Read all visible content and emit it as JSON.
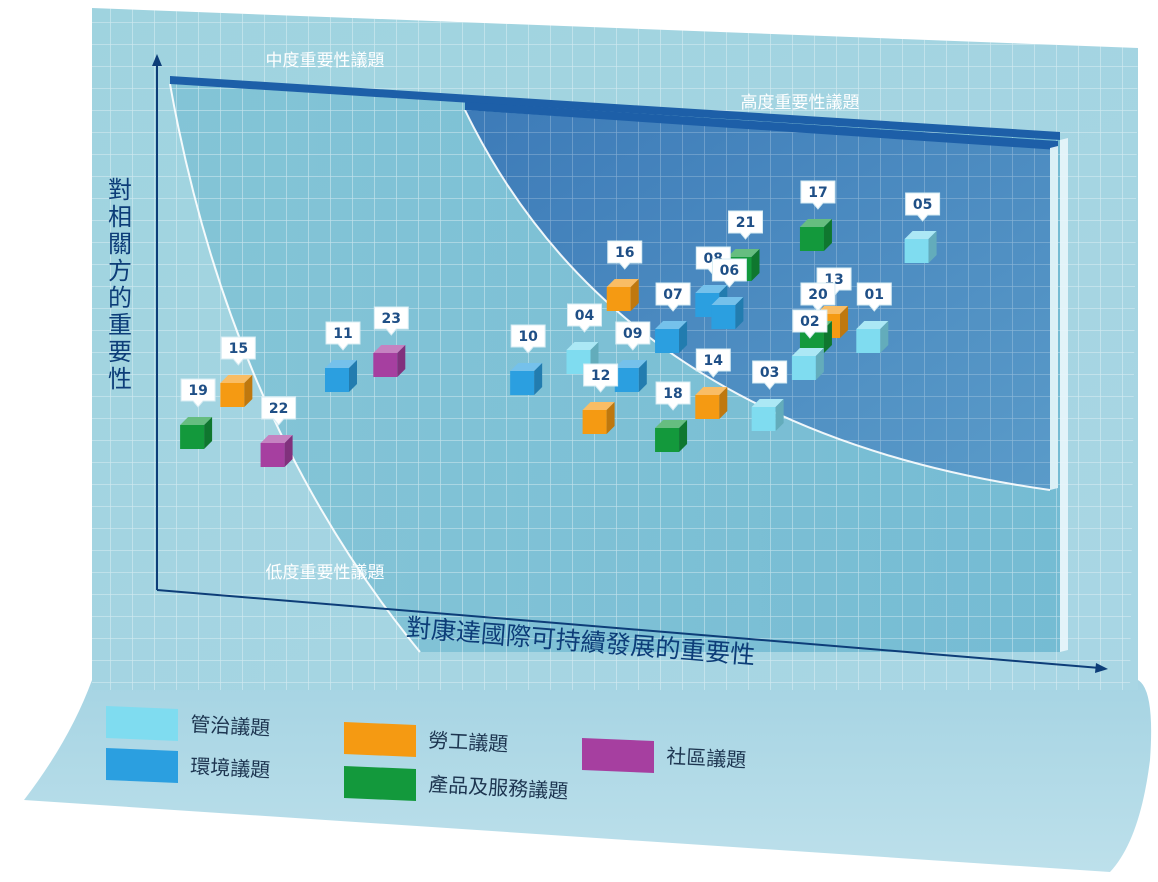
{
  "chart_data": {
    "type": "scatter",
    "title": "",
    "xlabel": "對康達國際可持續發展的重要性",
    "ylabel": "對相關方的重要性",
    "zones": {
      "low": "低度重要性議題",
      "mid": "中度重要性議題",
      "high": "高度重要性議題"
    },
    "legend": [
      {
        "key": "governance",
        "name": "管治議題",
        "color": "#7fdcf0"
      },
      {
        "key": "environment",
        "name": "環境議題",
        "color": "#2b9fe0"
      },
      {
        "key": "labour",
        "name": "勞工議題",
        "color": "#f59a12"
      },
      {
        "key": "product",
        "name": "產品及服務議題",
        "color": "#13993c"
      },
      {
        "key": "community",
        "name": "社區議題",
        "color": "#a63fa0"
      }
    ],
    "legend_placement": "bottom",
    "points": [
      {
        "id": "01",
        "category": "governance",
        "x": 86,
        "y": 56
      },
      {
        "id": "02",
        "category": "governance",
        "x": 78,
        "y": 47
      },
      {
        "id": "03",
        "category": "governance",
        "x": 73,
        "y": 30
      },
      {
        "id": "04",
        "category": "governance",
        "x": 50,
        "y": 49
      },
      {
        "id": "05",
        "category": "governance",
        "x": 92,
        "y": 86
      },
      {
        "id": "06",
        "category": "environment",
        "x": 68,
        "y": 64
      },
      {
        "id": "07",
        "category": "environment",
        "x": 61,
        "y": 56
      },
      {
        "id": "08",
        "category": "environment",
        "x": 66,
        "y": 68
      },
      {
        "id": "09",
        "category": "environment",
        "x": 56,
        "y": 43
      },
      {
        "id": "10",
        "category": "environment",
        "x": 43,
        "y": 42
      },
      {
        "id": "11",
        "category": "environment",
        "x": 20,
        "y": 43
      },
      {
        "id": "12",
        "category": "labour",
        "x": 52,
        "y": 29
      },
      {
        "id": "13",
        "category": "labour",
        "x": 81,
        "y": 61
      },
      {
        "id": "14",
        "category": "labour",
        "x": 66,
        "y": 34
      },
      {
        "id": "15",
        "category": "labour",
        "x": 7,
        "y": 38
      },
      {
        "id": "16",
        "category": "labour",
        "x": 55,
        "y": 70
      },
      {
        "id": "17",
        "category": "product",
        "x": 79,
        "y": 90
      },
      {
        "id": "18",
        "category": "product",
        "x": 61,
        "y": 23
      },
      {
        "id": "19",
        "category": "product",
        "x": 2,
        "y": 24
      },
      {
        "id": "20",
        "category": "product",
        "x": 79,
        "y": 56
      },
      {
        "id": "21",
        "category": "product",
        "x": 70,
        "y": 80
      },
      {
        "id": "22",
        "category": "community",
        "x": 12,
        "y": 18
      },
      {
        "id": "23",
        "category": "community",
        "x": 26,
        "y": 48
      }
    ],
    "xlim": [
      0,
      100
    ],
    "ylim": [
      0,
      100
    ],
    "grid": true
  }
}
